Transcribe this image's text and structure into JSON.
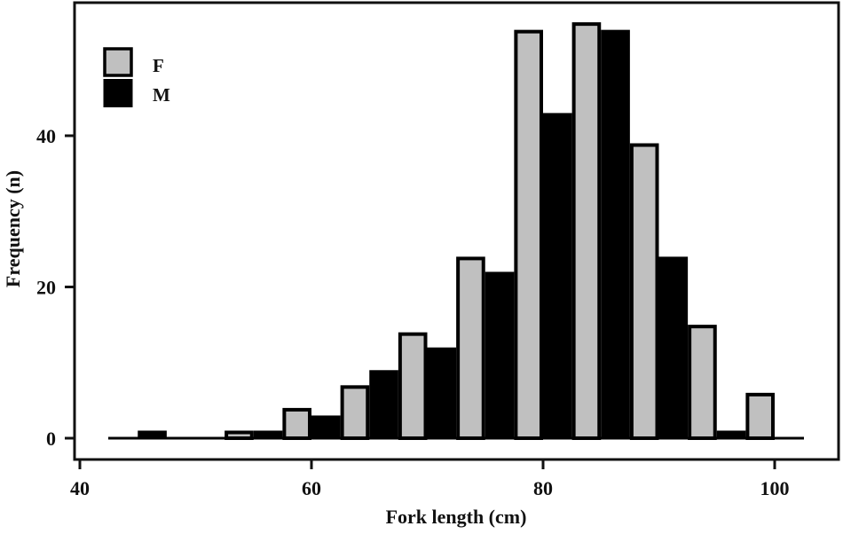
{
  "chart_data": {
    "type": "bar",
    "title": "",
    "xlabel": "Fork length (cm)",
    "ylabel": "Frequency (n)",
    "xlim": [
      39.5,
      105.5
    ],
    "ylim": [
      -3,
      57.5
    ],
    "xticks": [
      40,
      60,
      80,
      100
    ],
    "yticks": [
      0,
      20,
      40
    ],
    "grid": false,
    "legend_position": "upper-left",
    "bin_width": 5,
    "bin_starts": [
      42.5,
      47.5,
      52.5,
      57.5,
      62.5,
      67.5,
      72.5,
      77.5,
      82.5,
      87.5,
      92.5,
      97.5
    ],
    "categories": [
      "42.5-47.5",
      "47.5-52.5",
      "52.5-57.5",
      "57.5-62.5",
      "62.5-67.5",
      "67.5-72.5",
      "72.5-77.5",
      "77.5-82.5",
      "82.5-87.5",
      "87.5-92.5",
      "92.5-97.5",
      "97.5-102.5"
    ],
    "series": [
      {
        "name": "F",
        "color": "#c0c0c0",
        "values": [
          0,
          0,
          1,
          4,
          7,
          14,
          24,
          54,
          55,
          39,
          15,
          6
        ]
      },
      {
        "name": "M",
        "color": "#000000",
        "values": [
          1,
          0,
          1,
          3,
          9,
          12,
          22,
          43,
          54,
          24,
          1,
          0
        ]
      }
    ]
  },
  "legend": {
    "items": [
      {
        "label": "F",
        "color": "#c0c0c0"
      },
      {
        "label": "M",
        "color": "#000000"
      }
    ]
  },
  "axes": {
    "x_title": "Fork length (cm)",
    "y_title": "Frequency (n)",
    "x_tick_labels": [
      "40",
      "60",
      "80",
      "100"
    ],
    "y_tick_labels": [
      "0",
      "20",
      "40"
    ]
  }
}
